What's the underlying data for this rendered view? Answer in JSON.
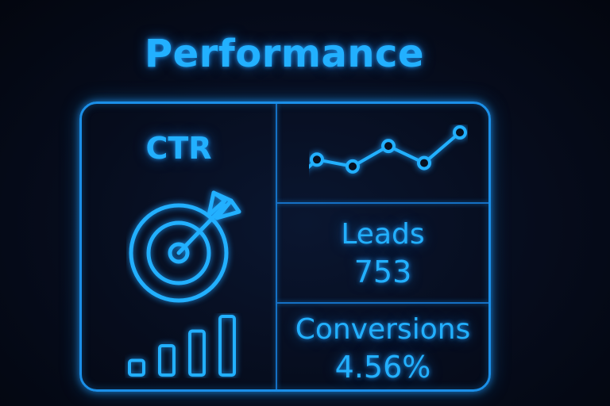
{
  "header": {
    "title": "Performance"
  },
  "card": {
    "ctr_label": "CTR",
    "leads": {
      "label": "Leads",
      "value": "753"
    },
    "conversions": {
      "label": "Conversions",
      "value": "4.56%"
    }
  },
  "icons": [
    "target-arrow-icon",
    "bar-chart-icon",
    "trend-line-icon"
  ],
  "colors": {
    "accent": "#22b0ff",
    "border": "#1b8fe8",
    "background": "#050914"
  },
  "chart_data": {
    "type": "line",
    "x": [
      1,
      2,
      3,
      4,
      5
    ],
    "values": [
      3,
      2,
      5,
      2.5,
      7
    ]
  },
  "bars_data": {
    "values": [
      1,
      2,
      3,
      4
    ]
  }
}
